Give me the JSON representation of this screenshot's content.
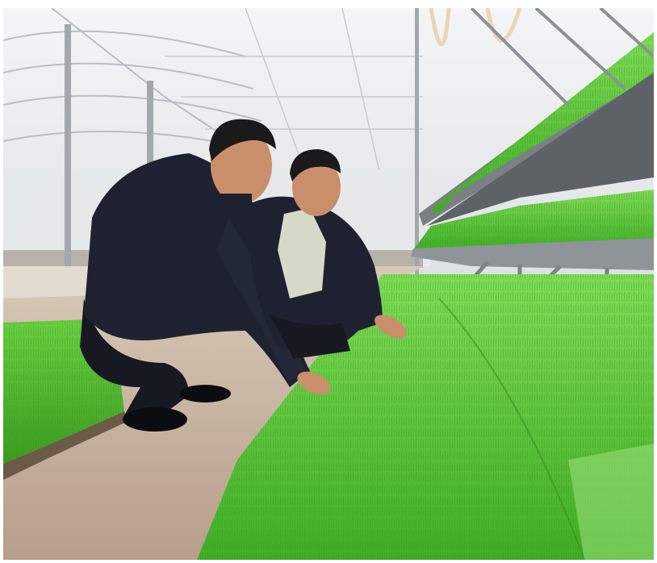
{
  "image": {
    "kind": "photograph",
    "text": []
  },
  "palette": {
    "greenhouse_roof": "#eef0f2",
    "greenhouse_frame": "#9ea4aa",
    "floor": "#c9b8a6",
    "seedling_green": "#5fcf3a",
    "seedling_dark": "#3d9e26",
    "rack_steel": "#8d9196",
    "suit_dark": "#1e2230",
    "shirt": "#d7d9c8",
    "skin": "#c98f6a"
  }
}
